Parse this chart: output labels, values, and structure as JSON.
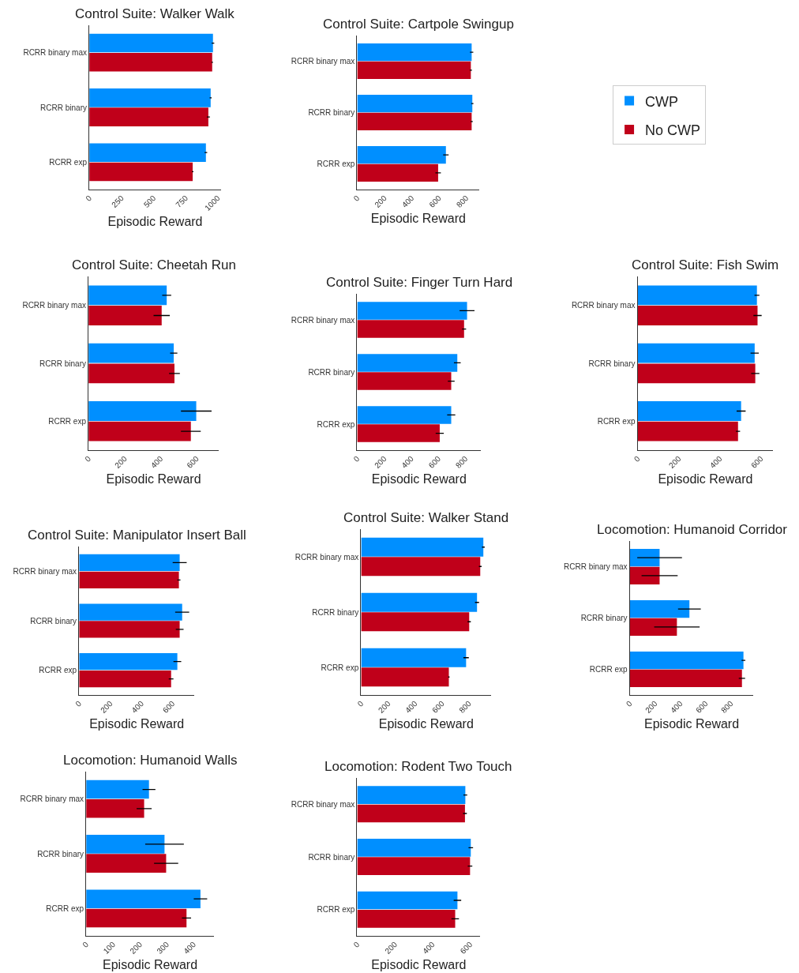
{
  "chart_data": [
    {
      "type": "bar",
      "orientation": "horizontal",
      "title": "Control Suite: Walker Walk",
      "xlabel": "Episodic Reward",
      "categories": [
        "RCRR binary max",
        "RCRR binary",
        "RCRR exp"
      ],
      "xlim": [
        0,
        1025
      ],
      "xticks": [
        0,
        250,
        500,
        750,
        1000
      ],
      "legend": "right",
      "series": [
        {
          "name": "CWP",
          "color": "#008fff",
          "values": [
            963,
            945,
            908
          ],
          "errors": [
            10,
            8,
            10
          ]
        },
        {
          "name": "No CWP",
          "color": "#c0001a",
          "values": [
            957,
            927,
            805
          ],
          "errors": [
            6,
            12,
            6
          ]
        }
      ]
    },
    {
      "type": "bar",
      "orientation": "horizontal",
      "title": "Control Suite: Cartpole Swingup",
      "xlabel": "Episodic Reward",
      "categories": [
        "RCRR binary max",
        "RCRR binary",
        "RCRR exp"
      ],
      "xlim": [
        0,
        897
      ],
      "xticks": [
        0,
        200,
        400,
        600,
        800
      ],
      "series": [
        {
          "color": "#008fff",
          "values": [
            840,
            845,
            651
          ],
          "errors": [
            12,
            8,
            20
          ]
        },
        {
          "color": "#c0001a",
          "values": [
            834,
            840,
            594
          ],
          "errors": [
            8,
            8,
            20
          ]
        }
      ]
    },
    {
      "type": "bar",
      "orientation": "horizontal",
      "title": "Control Suite: Cheetah Run",
      "xlabel": "Episodic Reward",
      "categories": [
        "RCRR binary max",
        "RCRR binary",
        "RCRR exp"
      ],
      "xlim": [
        0,
        722
      ],
      "xticks": [
        0,
        200,
        400,
        600
      ],
      "series": [
        {
          "color": "#008fff",
          "values": [
            434,
            473,
            598
          ],
          "errors": [
            25,
            20,
            85
          ]
        },
        {
          "color": "#c0001a",
          "values": [
            406,
            477,
            568
          ],
          "errors": [
            45,
            30,
            55
          ]
        }
      ]
    },
    {
      "type": "bar",
      "orientation": "horizontal",
      "title": "Control Suite: Finger Turn Hard",
      "xlabel": "Episodic Reward",
      "categories": [
        "RCRR binary max",
        "RCRR binary",
        "RCRR exp"
      ],
      "xlim": [
        0,
        915
      ],
      "xticks": [
        0,
        200,
        400,
        600,
        800
      ],
      "series": [
        {
          "color": "#008fff",
          "values": [
            812,
            740,
            695
          ],
          "errors": [
            55,
            25,
            30
          ]
        },
        {
          "color": "#c0001a",
          "values": [
            790,
            695,
            610
          ],
          "errors": [
            15,
            25,
            30
          ]
        }
      ]
    },
    {
      "type": "bar",
      "orientation": "horizontal",
      "title": "Control Suite: Fish Swim",
      "xlabel": "Episodic Reward",
      "categories": [
        "RCRR binary max",
        "RCRR binary",
        "RCRR exp"
      ],
      "xlim": [
        0,
        660
      ],
      "xticks": [
        0,
        200,
        400,
        600
      ],
      "series": [
        {
          "color": "#008fff",
          "values": [
            581,
            570,
            504
          ],
          "errors": [
            12,
            20,
            22
          ]
        },
        {
          "color": "#c0001a",
          "values": [
            584,
            573,
            489
          ],
          "errors": [
            20,
            20,
            10
          ]
        }
      ]
    },
    {
      "type": "bar",
      "orientation": "horizontal",
      "title": "Control Suite: Manipulator Insert Ball",
      "xlabel": "Episodic Reward",
      "categories": [
        "RCRR binary max",
        "RCRR binary",
        "RCRR exp"
      ],
      "xlim": [
        0,
        740
      ],
      "xticks": [
        0,
        200,
        400,
        600
      ],
      "series": [
        {
          "color": "#008fff",
          "values": [
            646,
            662,
            631
          ],
          "errors": [
            45,
            45,
            25
          ]
        },
        {
          "color": "#c0001a",
          "values": [
            641,
            646,
            591
          ],
          "errors": [
            10,
            25,
            15
          ]
        }
      ]
    },
    {
      "type": "bar",
      "orientation": "horizontal",
      "title": "Control Suite: Walker Stand",
      "xlabel": "Episodic Reward",
      "categories": [
        "RCRR binary max",
        "RCRR binary",
        "RCRR exp"
      ],
      "xlim": [
        0,
        965
      ],
      "xticks": [
        0,
        200,
        400,
        600,
        800
      ],
      "series": [
        {
          "color": "#008fff",
          "values": [
            907,
            860,
            779
          ],
          "errors": [
            10,
            15,
            20
          ]
        },
        {
          "color": "#c0001a",
          "values": [
            884,
            802,
            651
          ],
          "errors": [
            10,
            12,
            5
          ]
        }
      ]
    },
    {
      "type": "bar",
      "orientation": "horizontal",
      "title": "Locomotion: Humanoid Corridor",
      "xlabel": "Episodic Reward",
      "categories": [
        "RCRR binary max",
        "RCRR binary",
        "RCRR exp"
      ],
      "xlim": [
        0,
        980
      ],
      "xticks": [
        0,
        200,
        400,
        600,
        800
      ],
      "series": [
        {
          "color": "#008fff",
          "values": [
            236,
            472,
            900
          ],
          "errors": [
            177,
            90,
            15
          ]
        },
        {
          "color": "#c0001a",
          "values": [
            236,
            373,
            888
          ],
          "errors": [
            143,
            180,
            25
          ]
        }
      ]
    },
    {
      "type": "bar",
      "orientation": "horizontal",
      "title": "Locomotion: Humanoid Walls",
      "xlabel": "Episodic Reward",
      "categories": [
        "RCRR binary max",
        "RCRR binary",
        "RCRR exp"
      ],
      "xlim": [
        0,
        476
      ],
      "xticks": [
        0,
        100,
        200,
        300,
        400
      ],
      "series": [
        {
          "color": "#008fff",
          "values": [
            234,
            292,
            426
          ],
          "errors": [
            24,
            72,
            25
          ]
        },
        {
          "color": "#c0001a",
          "values": [
            216,
            298,
            374
          ],
          "errors": [
            28,
            45,
            17
          ]
        }
      ]
    },
    {
      "type": "bar",
      "orientation": "horizontal",
      "title": "Locomotion: Rodent Two Touch",
      "xlabel": "Episodic Reward",
      "categories": [
        "RCRR binary max",
        "RCRR binary",
        "RCRR exp"
      ],
      "xlim": [
        0,
        654
      ],
      "xticks": [
        0,
        200,
        400,
        600
      ],
      "series": [
        {
          "color": "#008fff",
          "values": [
            575,
            604,
            533
          ],
          "errors": [
            10,
            12,
            20
          ]
        },
        {
          "color": "#c0001a",
          "values": [
            573,
            600,
            521
          ],
          "errors": [
            10,
            12,
            20
          ]
        }
      ]
    }
  ]
}
